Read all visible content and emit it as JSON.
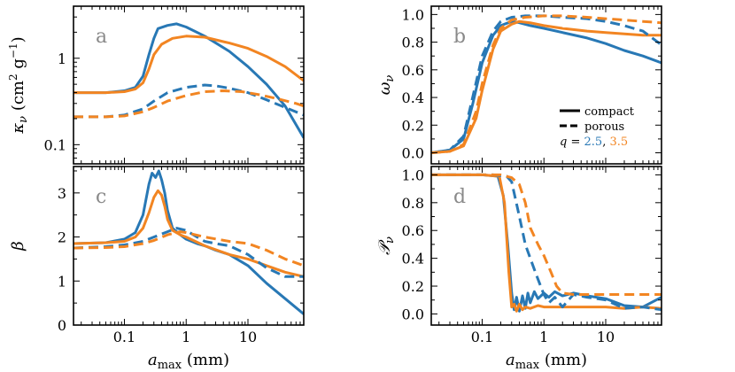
{
  "colors": {
    "blue": "#2878b5",
    "orange": "#f28522",
    "letter": "#8a8a8a"
  },
  "chart_data": [
    {
      "panel": "a",
      "type": "line",
      "ylabel": "κ_ν (cm² g⁻¹)",
      "ylabel_prefix": "κ",
      "ylabel_sub": "ν",
      "ylabel_units": "(cm",
      "ylabel_units_sup": "2",
      "ylabel_units_mid": " g",
      "ylabel_units_sup2": "−1",
      "ylabel_units_end": ")",
      "yscale": "log",
      "ylim": [
        0.06,
        4.0
      ],
      "yticks": [
        0.1,
        1
      ],
      "ytick_labels": [
        "0.1",
        "1"
      ],
      "xscale": "log",
      "xlim": [
        0.015,
        80
      ],
      "xticks": [
        0.1,
        1,
        10
      ],
      "xtick_labels": [
        "0.1",
        "1",
        "10"
      ],
      "series": [
        {
          "name": "compact q=2.5",
          "color": "blue",
          "dash": false,
          "x": [
            0.015,
            0.05,
            0.1,
            0.15,
            0.2,
            0.25,
            0.3,
            0.35,
            0.5,
            0.7,
            1,
            2,
            5,
            10,
            20,
            40,
            80
          ],
          "y": [
            0.4,
            0.4,
            0.42,
            0.46,
            0.62,
            1.1,
            1.7,
            2.2,
            2.4,
            2.5,
            2.3,
            1.8,
            1.2,
            0.8,
            0.5,
            0.28,
            0.12
          ]
        },
        {
          "name": "compact q=3.5",
          "color": "orange",
          "dash": false,
          "x": [
            0.015,
            0.05,
            0.1,
            0.15,
            0.2,
            0.25,
            0.3,
            0.4,
            0.6,
            1,
            2,
            5,
            10,
            20,
            40,
            80
          ],
          "y": [
            0.4,
            0.4,
            0.41,
            0.44,
            0.52,
            0.75,
            1.1,
            1.45,
            1.7,
            1.8,
            1.75,
            1.5,
            1.3,
            1.05,
            0.8,
            0.55
          ]
        },
        {
          "name": "porous q=2.5",
          "color": "blue",
          "dash": true,
          "x": [
            0.015,
            0.05,
            0.1,
            0.2,
            0.3,
            0.5,
            1,
            2,
            3,
            5,
            10,
            20,
            40,
            80
          ],
          "y": [
            0.21,
            0.21,
            0.22,
            0.26,
            0.32,
            0.4,
            0.46,
            0.49,
            0.48,
            0.45,
            0.4,
            0.33,
            0.27,
            0.22
          ]
        },
        {
          "name": "porous q=3.5",
          "color": "orange",
          "dash": true,
          "x": [
            0.015,
            0.05,
            0.1,
            0.2,
            0.3,
            0.5,
            1,
            2,
            4,
            8,
            15,
            30,
            60,
            80
          ],
          "y": [
            0.21,
            0.21,
            0.215,
            0.24,
            0.27,
            0.32,
            0.37,
            0.41,
            0.42,
            0.41,
            0.38,
            0.34,
            0.3,
            0.28
          ]
        }
      ]
    },
    {
      "panel": "b",
      "type": "line",
      "ylabel": "ω_ν",
      "ylabel_prefix": "ω",
      "ylabel_sub": "ν",
      "yscale": "linear",
      "ylim": [
        -0.08,
        1.06
      ],
      "yticks": [
        0.0,
        0.2,
        0.4,
        0.6,
        0.8,
        1.0
      ],
      "ytick_labels": [
        "0.0",
        "0.2",
        "0.4",
        "0.6",
        "0.8",
        "1.0"
      ],
      "xscale": "log",
      "xlim": [
        0.015,
        80
      ],
      "xticks": [
        0.1,
        1,
        10
      ],
      "xtick_labels": [
        "0.1",
        "1",
        "10"
      ],
      "legend": {
        "location": "right",
        "compact_label": "compact",
        "porous_label": "porous",
        "q_prefix": "q",
        "q_eq": " = ",
        "q1": "2.5",
        "q_sep": ", ",
        "q2": "3.5"
      },
      "series": [
        {
          "name": "compact q=2.5",
          "color": "blue",
          "dash": false,
          "x": [
            0.015,
            0.03,
            0.05,
            0.07,
            0.1,
            0.15,
            0.2,
            0.3,
            0.4,
            0.6,
            1,
            2,
            5,
            10,
            20,
            40,
            80
          ],
          "y": [
            0.0,
            0.02,
            0.1,
            0.35,
            0.65,
            0.85,
            0.92,
            0.95,
            0.94,
            0.92,
            0.9,
            0.87,
            0.83,
            0.79,
            0.74,
            0.7,
            0.65
          ]
        },
        {
          "name": "compact q=3.5",
          "color": "orange",
          "dash": false,
          "x": [
            0.015,
            0.03,
            0.05,
            0.08,
            0.1,
            0.15,
            0.2,
            0.3,
            0.4,
            0.6,
            1,
            2,
            5,
            10,
            20,
            40,
            80
          ],
          "y": [
            0.0,
            0.01,
            0.05,
            0.25,
            0.45,
            0.75,
            0.88,
            0.93,
            0.95,
            0.94,
            0.92,
            0.9,
            0.88,
            0.87,
            0.86,
            0.85,
            0.85
          ]
        },
        {
          "name": "porous q=2.5",
          "color": "blue",
          "dash": true,
          "x": [
            0.015,
            0.03,
            0.05,
            0.07,
            0.1,
            0.15,
            0.2,
            0.3,
            0.5,
            1,
            2,
            5,
            10,
            20,
            40,
            80
          ],
          "y": [
            0.0,
            0.02,
            0.12,
            0.4,
            0.7,
            0.88,
            0.95,
            0.98,
            0.99,
            0.99,
            0.98,
            0.97,
            0.95,
            0.92,
            0.88,
            0.78
          ]
        },
        {
          "name": "porous q=3.5",
          "color": "orange",
          "dash": true,
          "x": [
            0.015,
            0.03,
            0.05,
            0.08,
            0.1,
            0.15,
            0.2,
            0.3,
            0.5,
            1,
            2,
            5,
            10,
            20,
            40,
            80
          ],
          "y": [
            0.0,
            0.01,
            0.06,
            0.3,
            0.5,
            0.78,
            0.9,
            0.96,
            0.98,
            0.99,
            0.99,
            0.98,
            0.97,
            0.96,
            0.95,
            0.94
          ]
        }
      ]
    },
    {
      "panel": "c",
      "type": "line",
      "ylabel": "β",
      "ylabel_prefix": "β",
      "ylabel_sub": "",
      "yscale": "linear",
      "ylim": [
        0,
        3.6
      ],
      "yticks": [
        0,
        1,
        2,
        3
      ],
      "ytick_labels": [
        "0",
        "1",
        "2",
        "3"
      ],
      "xscale": "log",
      "xlim": [
        0.015,
        80
      ],
      "xticks": [
        0.1,
        1,
        10
      ],
      "xtick_labels": [
        "0.1",
        "1",
        "10"
      ],
      "xlabel_prefix": "a",
      "xlabel_sub": "max",
      "xlabel_units": "(mm)",
      "series": [
        {
          "name": "compact q=2.5",
          "color": "blue",
          "dash": false,
          "x": [
            0.015,
            0.05,
            0.1,
            0.15,
            0.2,
            0.25,
            0.28,
            0.32,
            0.36,
            0.4,
            0.45,
            0.5,
            0.6,
            0.8,
            1,
            1.5,
            2,
            3,
            5,
            10,
            20,
            40,
            80
          ],
          "y": [
            1.85,
            1.87,
            1.95,
            2.1,
            2.5,
            3.2,
            3.45,
            3.35,
            3.5,
            3.3,
            3.0,
            2.6,
            2.2,
            2.05,
            1.95,
            1.85,
            1.8,
            1.7,
            1.6,
            1.35,
            0.95,
            0.6,
            0.25
          ]
        },
        {
          "name": "compact q=3.5",
          "color": "orange",
          "dash": false,
          "x": [
            0.015,
            0.05,
            0.1,
            0.15,
            0.2,
            0.25,
            0.3,
            0.35,
            0.4,
            0.45,
            0.5,
            0.6,
            0.8,
            1,
            2,
            5,
            10,
            20,
            40,
            80
          ],
          "y": [
            1.85,
            1.87,
            1.9,
            2.0,
            2.2,
            2.55,
            2.9,
            3.05,
            2.95,
            2.7,
            2.4,
            2.15,
            2.05,
            2.0,
            1.8,
            1.6,
            1.5,
            1.35,
            1.2,
            1.1
          ]
        },
        {
          "name": "porous q=2.5",
          "color": "blue",
          "dash": true,
          "x": [
            0.015,
            0.05,
            0.1,
            0.2,
            0.3,
            0.5,
            0.7,
            1,
            1.5,
            2,
            3,
            5,
            10,
            20,
            40,
            80
          ],
          "y": [
            1.75,
            1.78,
            1.82,
            1.9,
            2.0,
            2.12,
            2.2,
            2.15,
            2.0,
            1.9,
            1.85,
            1.8,
            1.6,
            1.3,
            1.1,
            1.1
          ]
        },
        {
          "name": "porous q=3.5",
          "color": "orange",
          "dash": true,
          "x": [
            0.015,
            0.05,
            0.1,
            0.2,
            0.3,
            0.5,
            0.8,
            1,
            2,
            5,
            10,
            20,
            40,
            80
          ],
          "y": [
            1.75,
            1.76,
            1.78,
            1.85,
            1.92,
            2.05,
            2.12,
            2.1,
            2.0,
            1.9,
            1.85,
            1.7,
            1.5,
            1.35
          ]
        }
      ]
    },
    {
      "panel": "d",
      "type": "line",
      "ylabel": "𝒫_ν",
      "ylabel_prefix": "𝒫",
      "ylabel_sub": "ν",
      "yscale": "linear",
      "ylim": [
        -0.08,
        1.06
      ],
      "yticks": [
        0.0,
        0.2,
        0.4,
        0.6,
        0.8,
        1.0
      ],
      "ytick_labels": [
        "0.0",
        "0.2",
        "0.4",
        "0.6",
        "0.8",
        "1.0"
      ],
      "xscale": "log",
      "xlim": [
        0.015,
        80
      ],
      "xticks": [
        0.1,
        1,
        10
      ],
      "xtick_labels": [
        "0.1",
        "1",
        "10"
      ],
      "xlabel_prefix": "a",
      "xlabel_sub": "max",
      "xlabel_units": "(mm)",
      "series": [
        {
          "name": "compact q=2.5",
          "color": "blue",
          "dash": false,
          "x": [
            0.015,
            0.1,
            0.18,
            0.22,
            0.26,
            0.3,
            0.33,
            0.36,
            0.4,
            0.45,
            0.5,
            0.55,
            0.6,
            0.7,
            0.8,
            1,
            1.2,
            1.5,
            2,
            3,
            5,
            10,
            20,
            40,
            80
          ],
          "y": [
            1.0,
            1.0,
            0.99,
            0.85,
            0.5,
            0.15,
            0.03,
            0.12,
            0.02,
            0.13,
            0.04,
            0.15,
            0.08,
            0.16,
            0.11,
            0.15,
            0.12,
            0.16,
            0.13,
            0.15,
            0.13,
            0.11,
            0.06,
            0.05,
            0.12
          ]
        },
        {
          "name": "compact q=3.5",
          "color": "orange",
          "dash": false,
          "x": [
            0.015,
            0.1,
            0.19,
            0.23,
            0.27,
            0.3,
            0.33,
            0.36,
            0.4,
            0.45,
            0.5,
            0.6,
            0.8,
            1,
            2,
            5,
            10,
            20,
            40,
            80
          ],
          "y": [
            1.0,
            1.0,
            0.99,
            0.8,
            0.3,
            0.05,
            0.07,
            0.02,
            0.07,
            0.03,
            0.05,
            0.04,
            0.06,
            0.05,
            0.05,
            0.05,
            0.05,
            0.04,
            0.05,
            0.04
          ]
        },
        {
          "name": "porous q=2.5",
          "color": "blue",
          "dash": true,
          "x": [
            0.015,
            0.15,
            0.25,
            0.3,
            0.4,
            0.5,
            0.6,
            0.7,
            0.8,
            1,
            1.2,
            1.5,
            2,
            3,
            5,
            10,
            20,
            40,
            80
          ],
          "y": [
            1.0,
            1.0,
            0.99,
            0.95,
            0.7,
            0.5,
            0.4,
            0.32,
            0.25,
            0.14,
            0.08,
            0.12,
            0.05,
            0.14,
            0.12,
            0.1,
            0.04,
            0.05,
            0.03
          ]
        },
        {
          "name": "porous q=3.5",
          "color": "orange",
          "dash": true,
          "x": [
            0.015,
            0.2,
            0.3,
            0.4,
            0.5,
            0.6,
            0.8,
            1,
            1.3,
            1.6,
            2,
            3,
            5,
            10,
            20,
            40,
            80
          ],
          "y": [
            1.0,
            1.0,
            0.98,
            0.93,
            0.8,
            0.62,
            0.5,
            0.42,
            0.3,
            0.2,
            0.15,
            0.14,
            0.14,
            0.14,
            0.14,
            0.14,
            0.14
          ]
        }
      ]
    }
  ]
}
